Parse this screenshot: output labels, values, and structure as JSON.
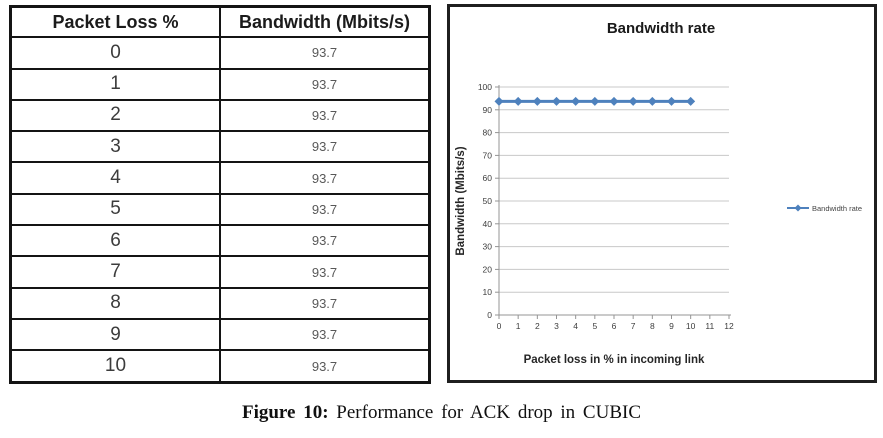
{
  "table": {
    "columns": [
      "Packet Loss %",
      "Bandwidth (Mbits/s)"
    ],
    "rows": [
      [
        "0",
        "93.7"
      ],
      [
        "1",
        "93.7"
      ],
      [
        "2",
        "93.7"
      ],
      [
        "3",
        "93.7"
      ],
      [
        "4",
        "93.7"
      ],
      [
        "5",
        "93.7"
      ],
      [
        "6",
        "93.7"
      ],
      [
        "7",
        "93.7"
      ],
      [
        "8",
        "93.7"
      ],
      [
        "9",
        "93.7"
      ],
      [
        "10",
        "93.7"
      ]
    ]
  },
  "chart_data": {
    "type": "line",
    "title": "Bandwidth rate",
    "xlabel": "Packet loss in % in incoming link",
    "ylabel": "Bandwidth (Mbits/s)",
    "x": [
      0,
      1,
      2,
      3,
      4,
      5,
      6,
      7,
      8,
      9,
      10
    ],
    "series": [
      {
        "name": "Bandwidth rate",
        "values": [
          93.7,
          93.7,
          93.7,
          93.7,
          93.7,
          93.7,
          93.7,
          93.7,
          93.7,
          93.7,
          93.7
        ]
      }
    ],
    "xlim": [
      0,
      12
    ],
    "ylim": [
      0,
      100
    ],
    "x_ticks": [
      0,
      1,
      2,
      3,
      4,
      5,
      6,
      7,
      8,
      9,
      10,
      11,
      12
    ],
    "y_ticks": [
      0,
      10,
      20,
      30,
      40,
      50,
      60,
      70,
      80,
      90,
      100
    ],
    "grid": "horizontal",
    "legend_position": "right",
    "legend_label": "Bandwidth rate",
    "line_color": "#4E81BD",
    "marker": "diamond"
  },
  "caption": {
    "prefix": "Figure 10:",
    "text": "Performance for ACK drop in CUBIC"
  }
}
